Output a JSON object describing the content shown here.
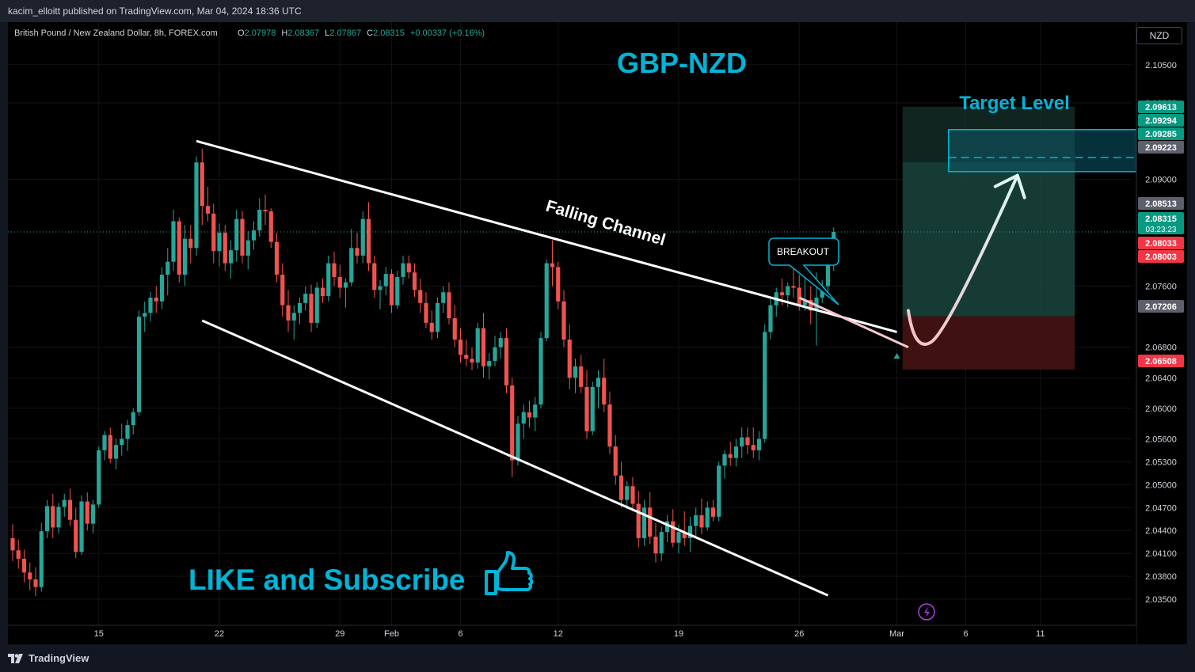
{
  "header": {
    "published": "kacim_elloitt published on TradingView.com, Mar 04, 2024 18:36 UTC"
  },
  "legend": {
    "symbol": "British Pound / New Zealand Dollar, 8h, FOREX.com",
    "o_label": "O",
    "o_value": "2.07978",
    "h_label": "H",
    "h_value": "2.08367",
    "l_label": "L",
    "l_value": "2.07867",
    "c_label": "C",
    "c_value": "2.08315",
    "change": "+0.00337 (+0.16%)"
  },
  "currency_button": "NZD",
  "annotations": {
    "title": "GBP-NZD",
    "target": "Target Level",
    "channel": "Falling Channel",
    "breakout": "BREAKOUT",
    "cta": "LIKE and Subscribe"
  },
  "footer": {
    "brand": "TradingView"
  },
  "colors": {
    "up": "#26a69a",
    "down": "#ef5350",
    "accent": "#00b4d8",
    "background": "#000000",
    "text": "#d1d4dc"
  },
  "chart_data": {
    "type": "candlestick",
    "title": "GBP-NZD",
    "symbol": "GBPNZD",
    "timeframe": "8h",
    "ylim": [
      2.032,
      2.1085
    ],
    "y_ticks": [
      "2.10500",
      "2.10000",
      "2.09000",
      "2.07600",
      "2.06800",
      "2.06400",
      "2.06000",
      "2.05600",
      "2.05300",
      "2.05000",
      "2.04700",
      "2.04400",
      "2.04100",
      "2.03800",
      "2.03500"
    ],
    "x_ticks": [
      {
        "label": "15",
        "bar": 15
      },
      {
        "label": "22",
        "bar": 36
      },
      {
        "label": "29",
        "bar": 57
      },
      {
        "label": "Feb",
        "bar": 66
      },
      {
        "label": "6",
        "bar": 78
      },
      {
        "label": "12",
        "bar": 95
      },
      {
        "label": "19",
        "bar": 116
      },
      {
        "label": "26",
        "bar": 137
      },
      {
        "label": "Mar",
        "bar": 154
      },
      {
        "label": "6",
        "bar": 166
      },
      {
        "label": "11",
        "bar": 179
      }
    ],
    "price_labels": [
      {
        "value": "2.09613",
        "kind": "green"
      },
      {
        "value": "2.09294",
        "kind": "green"
      },
      {
        "value": "2.09285",
        "kind": "green"
      },
      {
        "value": "2.09223",
        "kind": "grey"
      },
      {
        "value": "2.08513",
        "kind": "grey"
      },
      {
        "value": "2.08315",
        "sub": "03:23:23",
        "kind": "green"
      },
      {
        "value": "2.08033",
        "kind": "red"
      },
      {
        "value": "2.08003",
        "kind": "red"
      },
      {
        "value": "2.07206",
        "kind": "grey"
      },
      {
        "value": "2.06508",
        "kind": "red"
      }
    ],
    "channel": {
      "upper": [
        {
          "bar": 32,
          "price": 2.095
        },
        {
          "bar": 154,
          "price": 2.07
        }
      ],
      "lower": [
        {
          "bar": 33,
          "price": 2.0715
        },
        {
          "bar": 142,
          "price": 2.0355
        }
      ]
    },
    "breakout_line": [
      {
        "bar": 137,
        "price": 2.0745
      },
      {
        "bar": 156,
        "price": 2.068
      }
    ],
    "zones": {
      "entry": 2.07206,
      "target_top": 2.0995,
      "target_bottom": 2.09223,
      "target_box_top": 2.0965,
      "target_box_bottom": 2.091,
      "target_box_mid": 2.09285,
      "stop": 2.06508
    },
    "candles": [
      [
        2.043,
        2.0448,
        2.04,
        2.0414
      ],
      [
        2.0414,
        2.0428,
        2.039,
        2.0403
      ],
      [
        2.0403,
        2.0415,
        2.0372,
        2.0385
      ],
      [
        2.0385,
        2.0398,
        2.0362,
        2.0376
      ],
      [
        2.0376,
        2.0392,
        2.0354,
        2.0366
      ],
      [
        2.0366,
        2.045,
        2.036,
        2.0439
      ],
      [
        2.0439,
        2.048,
        2.043,
        2.0472
      ],
      [
        2.0472,
        2.0488,
        2.043,
        2.0444
      ],
      [
        2.0444,
        2.0476,
        2.0436,
        2.0471
      ],
      [
        2.0471,
        2.0488,
        2.0458,
        2.048
      ],
      [
        2.048,
        2.0495,
        2.0446,
        2.0454
      ],
      [
        2.0454,
        2.047,
        2.0404,
        2.0412
      ],
      [
        2.0412,
        2.0486,
        2.0408,
        2.0478
      ],
      [
        2.0478,
        2.049,
        2.044,
        2.0449
      ],
      [
        2.0449,
        2.048,
        2.0436,
        2.0474
      ],
      [
        2.0474,
        2.055,
        2.047,
        2.0545
      ],
      [
        2.0545,
        2.057,
        2.0532,
        2.0565
      ],
      [
        2.0565,
        2.0575,
        2.0528,
        2.0534
      ],
      [
        2.0534,
        2.056,
        2.052,
        2.0552
      ],
      [
        2.0552,
        2.058,
        2.0538,
        2.056
      ],
      [
        2.056,
        2.0585,
        2.0544,
        2.0578
      ],
      [
        2.0578,
        2.06,
        2.0566,
        2.0595
      ],
      [
        2.0595,
        2.0728,
        2.059,
        2.072
      ],
      [
        2.072,
        2.074,
        2.07,
        2.0725
      ],
      [
        2.0725,
        2.0752,
        2.0714,
        2.0745
      ],
      [
        2.0745,
        2.076,
        2.0725,
        2.074
      ],
      [
        2.074,
        2.0785,
        2.073,
        2.0775
      ],
      [
        2.0775,
        2.081,
        2.0748,
        2.0792
      ],
      [
        2.0792,
        2.086,
        2.078,
        2.0845
      ],
      [
        2.0845,
        2.085,
        2.0765,
        2.0775
      ],
      [
        2.0775,
        2.084,
        2.076,
        2.0822
      ],
      [
        2.0822,
        2.084,
        2.079,
        2.081
      ],
      [
        2.081,
        2.093,
        2.08,
        2.0922
      ],
      [
        2.0922,
        2.094,
        2.084,
        2.0865
      ],
      [
        2.0865,
        2.089,
        2.0845,
        2.0855
      ],
      [
        2.0855,
        2.0868,
        2.079,
        2.0806
      ],
      [
        2.0806,
        2.0842,
        2.0786,
        2.083
      ],
      [
        2.083,
        2.084,
        2.078,
        2.079
      ],
      [
        2.079,
        2.082,
        2.077,
        2.0807
      ],
      [
        2.0807,
        2.086,
        2.0792,
        2.0848
      ],
      [
        2.0848,
        2.0858,
        2.079,
        2.08
      ],
      [
        2.08,
        2.0832,
        2.0782,
        2.082
      ],
      [
        2.082,
        2.0845,
        2.0808,
        2.0833
      ],
      [
        2.0833,
        2.0875,
        2.0825,
        2.086
      ],
      [
        2.086,
        2.088,
        2.084,
        2.0858
      ],
      [
        2.0858,
        2.0862,
        2.081,
        2.0818
      ],
      [
        2.0818,
        2.083,
        2.0765,
        2.0775
      ],
      [
        2.0775,
        2.079,
        2.072,
        2.0735
      ],
      [
        2.0735,
        2.0755,
        2.07,
        2.0715
      ],
      [
        2.0715,
        2.0735,
        2.069,
        2.0725
      ],
      [
        2.0725,
        2.0745,
        2.071,
        2.0738
      ],
      [
        2.0738,
        2.076,
        2.0728,
        2.075
      ],
      [
        2.075,
        2.0762,
        2.07,
        2.0712
      ],
      [
        2.0712,
        2.0765,
        2.0705,
        2.0758
      ],
      [
        2.0758,
        2.077,
        2.0738,
        2.0747
      ],
      [
        2.0747,
        2.08,
        2.074,
        2.079
      ],
      [
        2.079,
        2.0805,
        2.076,
        2.0772
      ],
      [
        2.0772,
        2.0788,
        2.0745,
        2.0758
      ],
      [
        2.0758,
        2.077,
        2.0732,
        2.0765
      ],
      [
        2.0765,
        2.0835,
        2.076,
        2.081
      ],
      [
        2.081,
        2.083,
        2.079,
        2.08
      ],
      [
        2.08,
        2.0858,
        2.079,
        2.0848
      ],
      [
        2.0848,
        2.087,
        2.078,
        2.079
      ],
      [
        2.079,
        2.08,
        2.0745,
        2.0755
      ],
      [
        2.0755,
        2.0768,
        2.073,
        2.076
      ],
      [
        2.076,
        2.0785,
        2.0748,
        2.0776
      ],
      [
        2.0776,
        2.0782,
        2.0725,
        2.0735
      ],
      [
        2.0735,
        2.078,
        2.073,
        2.0772
      ],
      [
        2.0772,
        2.08,
        2.0762,
        2.079
      ],
      [
        2.079,
        2.08,
        2.077,
        2.0778
      ],
      [
        2.0778,
        2.079,
        2.0746,
        2.0755
      ],
      [
        2.0755,
        2.077,
        2.0725,
        2.0738
      ],
      [
        2.0738,
        2.0752,
        2.0705,
        2.0712
      ],
      [
        2.0712,
        2.0728,
        2.069,
        2.07
      ],
      [
        2.07,
        2.0745,
        2.0692,
        2.0738
      ],
      [
        2.0738,
        2.076,
        2.0725,
        2.0752
      ],
      [
        2.0752,
        2.0765,
        2.071,
        2.0718
      ],
      [
        2.0718,
        2.0735,
        2.068,
        2.069
      ],
      [
        2.069,
        2.0705,
        2.066,
        2.067
      ],
      [
        2.067,
        2.069,
        2.0655,
        2.0665
      ],
      [
        2.0665,
        2.068,
        2.065,
        2.066
      ],
      [
        2.066,
        2.0712,
        2.0652,
        2.0705
      ],
      [
        2.0705,
        2.0725,
        2.064,
        2.0655
      ],
      [
        2.0655,
        2.0672,
        2.0638,
        2.0662
      ],
      [
        2.0662,
        2.0695,
        2.0655,
        2.068
      ],
      [
        2.068,
        2.07,
        2.0665,
        2.0692
      ],
      [
        2.0692,
        2.0705,
        2.062,
        2.063
      ],
      [
        2.063,
        2.064,
        2.051,
        2.0532
      ],
      [
        2.0532,
        2.059,
        2.0525,
        2.058
      ],
      [
        2.058,
        2.0605,
        2.056,
        2.0595
      ],
      [
        2.0595,
        2.061,
        2.0575,
        2.0588
      ],
      [
        2.0588,
        2.0615,
        2.057,
        2.0605
      ],
      [
        2.0605,
        2.07,
        2.06,
        2.0692
      ],
      [
        2.0692,
        2.0795,
        2.0688,
        2.079
      ],
      [
        2.079,
        2.082,
        2.076,
        2.0785
      ],
      [
        2.0785,
        2.0792,
        2.073,
        2.074
      ],
      [
        2.074,
        2.0755,
        2.068,
        2.069
      ],
      [
        2.069,
        2.071,
        2.0625,
        2.064
      ],
      [
        2.064,
        2.0665,
        2.062,
        2.0655
      ],
      [
        2.0655,
        2.067,
        2.062,
        2.0628
      ],
      [
        2.0628,
        2.065,
        2.056,
        2.057
      ],
      [
        2.057,
        2.0635,
        2.0565,
        2.0628
      ],
      [
        2.0628,
        2.065,
        2.06,
        2.064
      ],
      [
        2.064,
        2.0665,
        2.0595,
        2.0605
      ],
      [
        2.0605,
        2.0622,
        2.054,
        2.055
      ],
      [
        2.055,
        2.0565,
        2.05,
        2.0512
      ],
      [
        2.0512,
        2.053,
        2.047,
        2.048
      ],
      [
        2.048,
        2.0505,
        2.0468,
        2.0498
      ],
      [
        2.0498,
        2.051,
        2.0465,
        2.0475
      ],
      [
        2.0475,
        2.0492,
        2.0418,
        2.043
      ],
      [
        2.043,
        2.048,
        2.042,
        2.047
      ],
      [
        2.047,
        2.049,
        2.0422,
        2.0432
      ],
      [
        2.0432,
        2.045,
        2.0398,
        2.041
      ],
      [
        2.041,
        2.0445,
        2.04,
        2.0438
      ],
      [
        2.0438,
        2.046,
        2.0425,
        2.0452
      ],
      [
        2.0452,
        2.0468,
        2.0418,
        2.0424
      ],
      [
        2.0424,
        2.0448,
        2.041,
        2.0438
      ],
      [
        2.0438,
        2.0465,
        2.042,
        2.043
      ],
      [
        2.043,
        2.0458,
        2.0412,
        2.0446
      ],
      [
        2.0446,
        2.047,
        2.043,
        2.046
      ],
      [
        2.046,
        2.0482,
        2.0435,
        2.0444
      ],
      [
        2.0444,
        2.0478,
        2.044,
        2.047
      ],
      [
        2.047,
        2.048,
        2.0452,
        2.0458
      ],
      [
        2.0458,
        2.053,
        2.0452,
        2.0525
      ],
      [
        2.0525,
        2.0545,
        2.0508,
        2.054
      ],
      [
        2.054,
        2.0556,
        2.0525,
        2.0535
      ],
      [
        2.0535,
        2.056,
        2.0524,
        2.055
      ],
      [
        2.055,
        2.0575,
        2.0535,
        2.0562
      ],
      [
        2.0562,
        2.0575,
        2.054,
        2.0552
      ],
      [
        2.0552,
        2.0575,
        2.0535,
        2.0545
      ],
      [
        2.0545,
        2.057,
        2.0532,
        2.056
      ],
      [
        2.056,
        2.071,
        2.0555,
        2.07
      ],
      [
        2.07,
        2.0745,
        2.069,
        2.0735
      ],
      [
        2.0735,
        2.0758,
        2.072,
        2.0752
      ],
      [
        2.0752,
        2.077,
        2.0735,
        2.0748
      ],
      [
        2.0748,
        2.0765,
        2.0732,
        2.076
      ],
      [
        2.076,
        2.0795,
        2.0745,
        2.0758
      ],
      [
        2.0758,
        2.0775,
        2.0728,
        2.0735
      ],
      [
        2.0735,
        2.077,
        2.0728,
        2.0742
      ],
      [
        2.0742,
        2.076,
        2.071,
        2.0728
      ],
      [
        2.0728,
        2.0778,
        2.0682,
        2.0745
      ],
      [
        2.0745,
        2.0768,
        2.0738,
        2.076
      ],
      [
        2.076,
        2.081,
        2.0752,
        2.0792
      ],
      [
        2.0792,
        2.0837,
        2.078,
        2.0831
      ]
    ]
  }
}
